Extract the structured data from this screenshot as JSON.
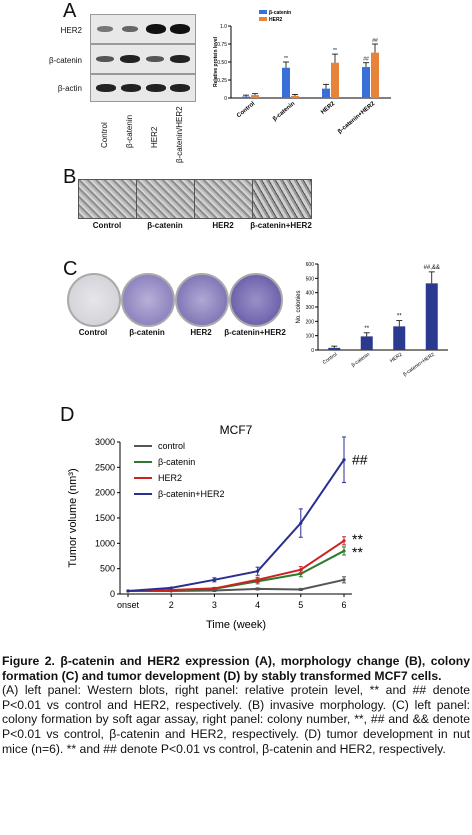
{
  "panel_labels": {
    "a": "A",
    "b": "B",
    "c": "C",
    "d": "D"
  },
  "panel_a": {
    "blot_rows": [
      "HER2",
      "β-catenin",
      "β-actin"
    ],
    "lanes": [
      "Control",
      "β-catenin",
      "HER2",
      "β-catenin/HER2"
    ],
    "chart_data": {
      "type": "bar",
      "categories": [
        "Control",
        "β-catenin",
        "HER2",
        "β-catenin+HER2"
      ],
      "series": [
        {
          "name": "β-catenin",
          "values": [
            0.02,
            0.42,
            0.13,
            0.43
          ],
          "errors": [
            0.02,
            0.08,
            0.06,
            0.06
          ]
        },
        {
          "name": "HER2",
          "values": [
            0.04,
            0.03,
            0.49,
            0.63
          ],
          "errors": [
            0.02,
            0.02,
            0.12,
            0.12
          ]
        }
      ],
      "ylabel": "Relative protein level",
      "yticks": [
        "0",
        "0.25",
        "0.50",
        "0.75",
        "1.0"
      ],
      "ylim": [
        0,
        1.0
      ],
      "annotations": [
        {
          "category": "β-catenin",
          "series": 0,
          "text": "**"
        },
        {
          "category": "HER2",
          "series": 1,
          "text": "**"
        },
        {
          "category": "β-catenin+HER2",
          "series": 0,
          "text": "##"
        },
        {
          "category": "β-catenin+HER2",
          "series": 1,
          "text": "##"
        }
      ],
      "colors": [
        "#3b6fd8",
        "#e8843a"
      ]
    }
  },
  "panel_b": {
    "labels": [
      "Control",
      "β-catenin",
      "HER2",
      "β-catenin+HER2"
    ]
  },
  "panel_c": {
    "labels": [
      "Control",
      "β-catenin",
      "HER2",
      "β-catenin+HER2"
    ],
    "chart_data": {
      "type": "bar",
      "categories": [
        "Control",
        "β-catenin",
        "HER2",
        "β-catenin+HER2"
      ],
      "values": [
        15,
        95,
        165,
        465
      ],
      "errors": [
        12,
        25,
        40,
        80
      ],
      "ylabel": "No. colonies",
      "yticks": [
        "0",
        "100",
        "200",
        "300",
        "400",
        "500",
        "600"
      ],
      "ylim": [
        0,
        600
      ],
      "annotations": [
        "",
        "**",
        "**",
        "##,&&"
      ],
      "color": "#2b3a8f"
    }
  },
  "panel_d": {
    "chart_data": {
      "type": "line",
      "title": "MCF7",
      "xlabel": "Time (week)",
      "ylabel": "Tumor volume (nm³)",
      "x": [
        "onset",
        "2",
        "3",
        "4",
        "5",
        "6"
      ],
      "ylim": [
        0,
        3000
      ],
      "yticks": [
        "0",
        "500",
        "1000",
        "1500",
        "2000",
        "2500",
        "3000"
      ],
      "series": [
        {
          "name": "control",
          "color": "#555555",
          "values": [
            60,
            60,
            70,
            100,
            90,
            280
          ],
          "errors": [
            0,
            0,
            20,
            20,
            20,
            60
          ]
        },
        {
          "name": "β-catenin",
          "color": "#2d7a2d",
          "values": [
            60,
            70,
            100,
            250,
            400,
            850
          ],
          "errors": [
            0,
            0,
            20,
            50,
            60,
            80
          ]
        },
        {
          "name": "HER2",
          "color": "#cc2222",
          "values": [
            60,
            80,
            110,
            280,
            480,
            1050
          ],
          "errors": [
            0,
            0,
            20,
            50,
            60,
            80
          ]
        },
        {
          "name": "β-catenin+HER2",
          "color": "#2a2f8f",
          "values": [
            60,
            120,
            280,
            450,
            1400,
            2650
          ],
          "errors": [
            0,
            0,
            40,
            80,
            280,
            450
          ]
        }
      ],
      "annotations": [
        {
          "series": "β-catenin+HER2",
          "text": "##"
        },
        {
          "series": "HER2",
          "text": "**"
        },
        {
          "series": "β-catenin",
          "text": "**"
        }
      ]
    }
  },
  "caption": {
    "title": "Figure 2. β-catenin and HER2 expression (A), morphology change (B), colony formation (C) and tumor development (D) by stably transformed MCF7 cells.",
    "body": "(A) left panel: Western blots, right panel: relative protein level, ** and ## denote P<0.01 vs control and HER2, respectively. (B) invasive morphology. (C) left panel: colony formation by soft agar assay, right panel: colony number, **, ## and && denote P<0.01 vs control, β-catenin and HER2, respectively. (D) tumor development in nut mice (n=6). ** and ## denote P<0.01 vs control, β-catenin and HER2, respectively."
  }
}
